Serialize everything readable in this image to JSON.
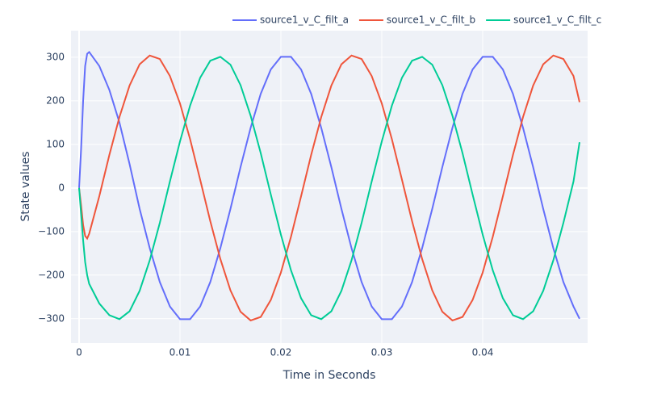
{
  "chart_data": {
    "type": "line",
    "xlabel": "Time in Seconds",
    "ylabel": "State values",
    "x": [
      0,
      0.0002,
      0.0004,
      0.0006,
      0.0008,
      0.001,
      0.002,
      0.003,
      0.004,
      0.005,
      0.006,
      0.007,
      0.008,
      0.009,
      0.01,
      0.011,
      0.012,
      0.013,
      0.014,
      0.015,
      0.016,
      0.017,
      0.018,
      0.019,
      0.02,
      0.021,
      0.022,
      0.023,
      0.024,
      0.025,
      0.026,
      0.027,
      0.028,
      0.029,
      0.03,
      0.031,
      0.032,
      0.033,
      0.034,
      0.035,
      0.036,
      0.037,
      0.038,
      0.039,
      0.04,
      0.041,
      0.042,
      0.043,
      0.044,
      0.045,
      0.046,
      0.047,
      0.048,
      0.049,
      0.0496
    ],
    "series": [
      {
        "name": "source1_v_C_filt_a",
        "color": "#636efa",
        "values": [
          0,
          90,
          200,
          280,
          308,
          312,
          280,
          225,
          150,
          55,
          -48,
          -138,
          -216,
          -272,
          -301,
          -301,
          -272,
          -216,
          -138,
          -48,
          48,
          138,
          216,
          272,
          301,
          301,
          272,
          216,
          138,
          48,
          -48,
          -138,
          -216,
          -272,
          -301,
          -301,
          -272,
          -216,
          -138,
          -48,
          48,
          138,
          216,
          272,
          301,
          301,
          272,
          216,
          138,
          48,
          -48,
          -138,
          -216,
          -272,
          -300
        ]
      },
      {
        "name": "source1_v_C_filt_b",
        "color": "#ef553b",
        "values": [
          0,
          -40,
          -85,
          -110,
          -116,
          -105,
          -19,
          76,
          163,
          235,
          284,
          304,
          296,
          257,
          194,
          112,
          19,
          -76,
          -163,
          -235,
          -284,
          -304,
          -296,
          -257,
          -194,
          -112,
          -19,
          76,
          163,
          235,
          284,
          304,
          296,
          257,
          194,
          112,
          19,
          -76,
          -163,
          -235,
          -284,
          -304,
          -296,
          -257,
          -194,
          -112,
          -19,
          76,
          163,
          235,
          284,
          304,
          296,
          257,
          197
        ]
      },
      {
        "name": "source1_v_C_filt_c",
        "color": "#00cc96",
        "values": [
          0,
          -60,
          -120,
          -170,
          -200,
          -220,
          -265,
          -292,
          -301,
          -283,
          -236,
          -166,
          -80,
          15,
          107,
          189,
          253,
          292,
          301,
          283,
          236,
          166,
          80,
          -15,
          -107,
          -189,
          -253,
          -292,
          -301,
          -283,
          -236,
          -166,
          -80,
          15,
          107,
          189,
          253,
          292,
          301,
          283,
          236,
          166,
          80,
          -15,
          -107,
          -189,
          -253,
          -292,
          -301,
          -283,
          -236,
          -166,
          -80,
          15,
          105
        ]
      }
    ],
    "xlim": [
      -0.0008,
      0.0504
    ],
    "ylim": [
      -356,
      361
    ],
    "xticks": [
      0,
      0.01,
      0.02,
      0.03,
      0.04
    ],
    "yticks": [
      {
        "value": -300,
        "label": "−300"
      },
      {
        "value": -200,
        "label": "−200"
      },
      {
        "value": -100,
        "label": "−100"
      },
      0,
      100,
      200,
      300
    ],
    "grid": true,
    "legend": "top-right"
  }
}
